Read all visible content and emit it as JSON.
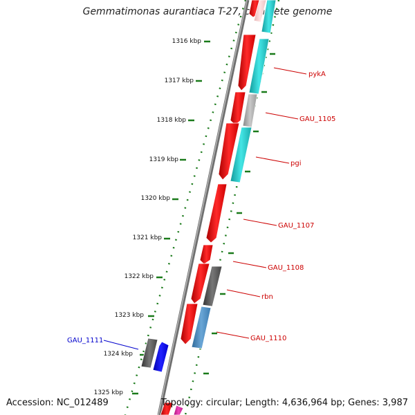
{
  "title": "Gemmatimonas aurantiaca T-27, complete genome",
  "accession": "Accession: NC_012489",
  "topology": "Topology: circular; Length: 4,636,964 bp; Genes: 3,987",
  "scale_ticks": [
    "1316 kbp",
    "1317 kbp",
    "1318 kbp",
    "1319 kbp",
    "1320 kbp",
    "1321 kbp",
    "1322 kbp",
    "1323 kbp",
    "1324 kbp",
    "1325 kbp"
  ],
  "gene_labels": [
    {
      "text": "pykA",
      "color": "#cc0000"
    },
    {
      "text": "GAU_1105",
      "color": "#cc0000"
    },
    {
      "text": "pgi",
      "color": "#cc0000"
    },
    {
      "text": "GAU_1107",
      "color": "#cc0000"
    },
    {
      "text": "GAU_1108",
      "color": "#cc0000"
    },
    {
      "text": "rbn",
      "color": "#cc0000"
    },
    {
      "text": "GAU_1110",
      "color": "#cc0000"
    },
    {
      "text": "GAU_1111",
      "color": "#0000cc"
    }
  ],
  "colors": {
    "backbone": "#888888",
    "tick_green": "#1a7a1a",
    "gene_red": "#ee0000",
    "gene_cyan": "#22cccc",
    "gene_gray": "#999999",
    "gene_dark_gray": "#555555",
    "gene_blue": "#0000ee",
    "gene_steel": "#4f8fbf",
    "gene_magenta": "#dd33aa"
  }
}
